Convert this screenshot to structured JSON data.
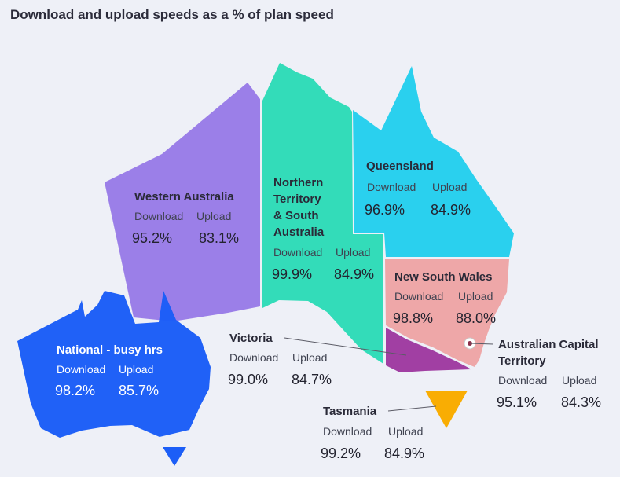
{
  "title": "Download and upload speeds as a % of plan speed",
  "colors": {
    "background": "#eef0f7",
    "western_australia": "#9b7fe8",
    "northern_territory_south_australia": "#33dcb9",
    "queensland": "#2ad0ee",
    "new_south_wales": "#eea7a8",
    "victoria": "#a13fa3",
    "tasmania": "#f9ad03",
    "national": "#1c5ef7"
  },
  "chart_data": {
    "type": "table",
    "title": "Download and upload speeds as a % of plan speed",
    "columns": [
      "Download",
      "Upload"
    ],
    "unit": "%",
    "rows": [
      {
        "region": "Western Australia",
        "download": "95.2%",
        "upload": "83.1%"
      },
      {
        "region": "Northern Territory & South Australia",
        "download": "99.9%",
        "upload": "84.9%"
      },
      {
        "region": "Queensland",
        "download": "96.9%",
        "upload": "84.9%"
      },
      {
        "region": "New South Wales",
        "download": "98.8%",
        "upload": "88.0%"
      },
      {
        "region": "Australian Capital Territory",
        "download": "95.1%",
        "upload": "84.3%"
      },
      {
        "region": "Victoria",
        "download": "99.0%",
        "upload": "84.7%"
      },
      {
        "region": "Tasmania",
        "download": "99.2%",
        "upload": "84.9%"
      },
      {
        "region": "National - busy hrs",
        "download": "98.2%",
        "upload": "85.7%"
      }
    ]
  },
  "labels": {
    "wa": {
      "name": "Western Australia"
    },
    "nt": {
      "name_lines": [
        "Northern",
        "Territory",
        "& South",
        "Australia"
      ]
    },
    "qld": {
      "name": "Queensland"
    },
    "nsw": {
      "name": "New South Wales"
    },
    "act": {
      "name_lines": [
        "Australian Capital",
        "Territory"
      ]
    },
    "vic": {
      "name": "Victoria"
    },
    "tas": {
      "name": "Tasmania"
    },
    "nat": {
      "name": "National - busy hrs"
    }
  }
}
